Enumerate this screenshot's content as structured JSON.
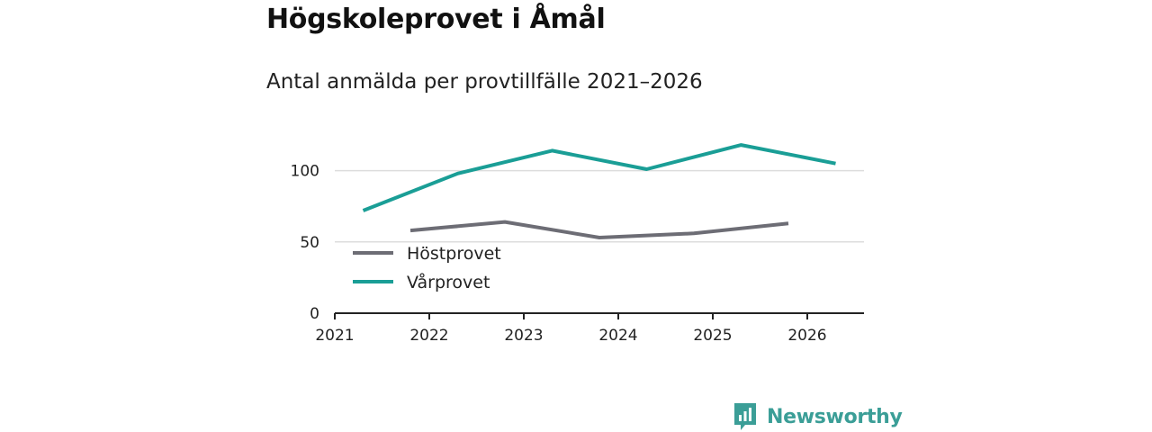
{
  "title": "Högskoleprovet i Åmål",
  "subtitle": "Antal anmälda per provtillfälle 2021–2026",
  "brand": {
    "name": "Newsworthy",
    "color": "#3b9e97"
  },
  "chart_data": {
    "type": "line",
    "title": "Högskoleprovet i Åmål",
    "subtitle": "Antal anmälda per provtillfälle 2021–2026",
    "xlabel": "",
    "ylabel": "",
    "xlim": [
      2021,
      2026.6
    ],
    "ylim": [
      0,
      125
    ],
    "x_ticks": [
      "2021",
      "2022",
      "2023",
      "2024",
      "2025",
      "2026"
    ],
    "y_ticks": [
      {
        "value": 0,
        "label": "0"
      },
      {
        "value": 50,
        "label": "50"
      },
      {
        "value": 100,
        "label": "100"
      }
    ],
    "grid": true,
    "legend_position": "lower-left",
    "series": [
      {
        "name": "Höstprovet",
        "color": "#6d6d75",
        "x": [
          2021.8,
          2022.8,
          2023.8,
          2024.8,
          2025.8
        ],
        "y": [
          58,
          64,
          53,
          56,
          63
        ]
      },
      {
        "name": "Vårprovet",
        "color": "#1a9e96",
        "x": [
          2021.3,
          2022.3,
          2023.3,
          2024.3,
          2025.3,
          2026.3
        ],
        "y": [
          72,
          98,
          114,
          101,
          118,
          105
        ]
      }
    ]
  }
}
